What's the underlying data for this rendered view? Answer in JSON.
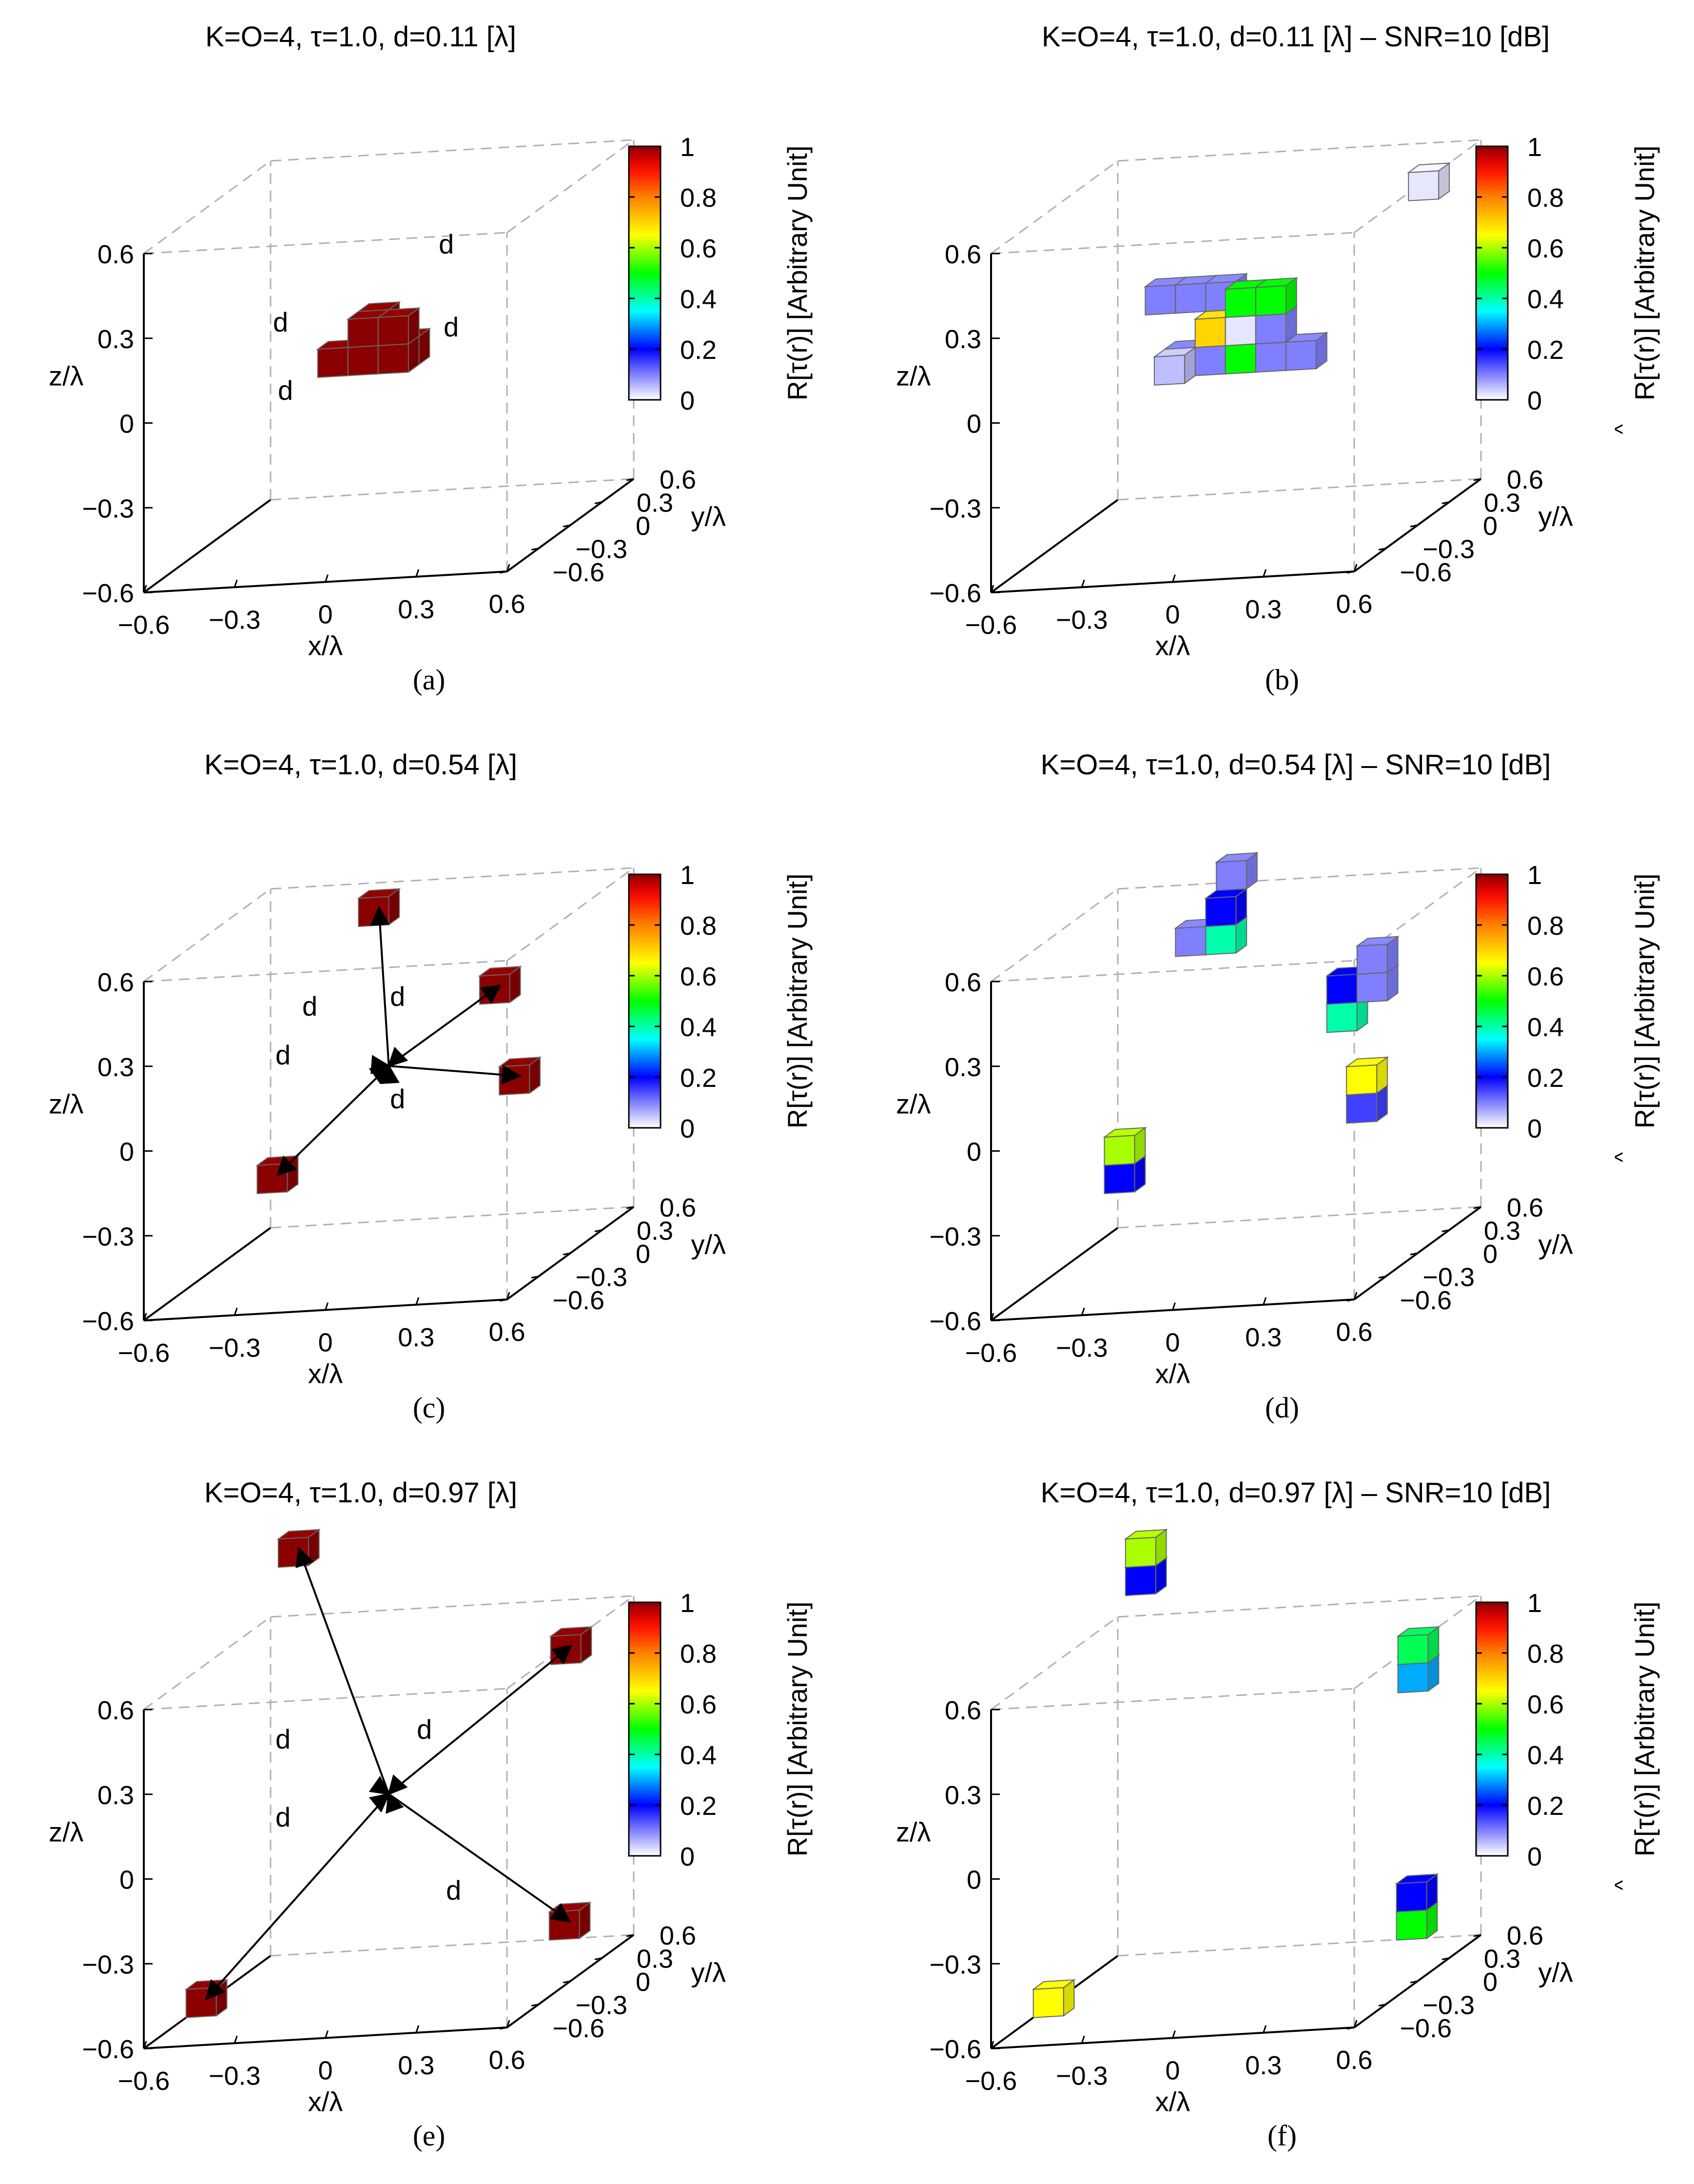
{
  "chart_data": [
    {
      "type": "voxel3d",
      "panel": "a",
      "title": "K=O=4, τ=1.0, d=0.11 [λ]",
      "xlabel": "x/λ",
      "ylabel": "y/λ",
      "zlabel": "z/λ",
      "ticks": [
        "−0.6",
        "−0.3",
        "0",
        "0.3",
        "0.6"
      ],
      "colorbar": {
        "label": "R[τ(r)] [Arbitrary Unit]",
        "hat": false,
        "ticks": [
          "0",
          "0.2",
          "0.4",
          "0.6",
          "0.8",
          "1"
        ]
      },
      "distance_labels": [
        "d",
        "d",
        "d",
        "d"
      ],
      "voxels": [
        {
          "x": -0.05,
          "y": -0.05,
          "z": 0.15,
          "v": 1.0
        },
        {
          "x": 0.05,
          "y": -0.05,
          "z": 0.15,
          "v": 1.0
        },
        {
          "x": -0.05,
          "y": 0.05,
          "z": 0.15,
          "v": 1.0
        },
        {
          "x": -0.05,
          "y": -0.05,
          "z": 0.05,
          "v": 1.0
        },
        {
          "x": 0.05,
          "y": -0.05,
          "z": 0.05,
          "v": 1.0
        },
        {
          "x": -0.15,
          "y": -0.05,
          "z": 0.05,
          "v": 1.0
        },
        {
          "x": -0.05,
          "y": 0.05,
          "z": 0.05,
          "v": 1.0
        },
        {
          "x": 0.05,
          "y": 0.05,
          "z": 0.05,
          "v": 1.0
        }
      ]
    },
    {
      "type": "voxel3d",
      "panel": "b",
      "title": "K=O=4, τ=1.0, d=0.11 [λ] – SNR=10 [dB]",
      "xlabel": "x/λ",
      "ylabel": "y/λ",
      "zlabel": "z/λ",
      "ticks": [
        "−0.6",
        "−0.3",
        "0",
        "0.3",
        "0.6"
      ],
      "colorbar": {
        "label": "R[τ(r)] [Arbitrary Unit]",
        "hat": true,
        "ticks": [
          "0",
          "0.2",
          "0.4",
          "0.6",
          "0.8",
          "1"
        ]
      },
      "voxels": [
        {
          "x": -0.25,
          "y": 0.05,
          "z": 0.25,
          "v": 0.1
        },
        {
          "x": -0.15,
          "y": 0.05,
          "z": 0.25,
          "v": 0.1
        },
        {
          "x": -0.05,
          "y": 0.05,
          "z": 0.25,
          "v": 0.1
        },
        {
          "x": 0.05,
          "y": -0.05,
          "z": 0.25,
          "v": 0.5
        },
        {
          "x": 0.15,
          "y": -0.05,
          "z": 0.25,
          "v": 0.5
        },
        {
          "x": -0.05,
          "y": -0.05,
          "z": 0.15,
          "v": 0.7
        },
        {
          "x": 0.05,
          "y": -0.05,
          "z": 0.15,
          "v": 0.02
        },
        {
          "x": 0.15,
          "y": -0.05,
          "z": 0.15,
          "v": 0.1
        },
        {
          "x": -0.15,
          "y": -0.05,
          "z": 0.05,
          "v": 0.1
        },
        {
          "x": -0.05,
          "y": -0.05,
          "z": 0.05,
          "v": 0.1
        },
        {
          "x": 0.05,
          "y": -0.05,
          "z": 0.05,
          "v": 0.5
        },
        {
          "x": 0.15,
          "y": -0.05,
          "z": 0.05,
          "v": 0.1
        },
        {
          "x": 0.25,
          "y": -0.05,
          "z": 0.05,
          "v": 0.1
        },
        {
          "x": -0.15,
          "y": -0.15,
          "z": 0.05,
          "v": 0.05
        },
        {
          "x": 0.55,
          "y": 0.25,
          "z": 0.55,
          "v": 0.02
        }
      ]
    },
    {
      "type": "voxel3d",
      "panel": "c",
      "title": "K=O=4, τ=1.0, d=0.54 [λ]",
      "xlabel": "x/λ",
      "ylabel": "y/λ",
      "zlabel": "z/λ",
      "ticks": [
        "−0.6",
        "−0.3",
        "0",
        "0.3",
        "0.6"
      ],
      "colorbar": {
        "label": "R[τ(r)] [Arbitrary Unit]",
        "hat": false,
        "ticks": [
          "0",
          "0.2",
          "0.4",
          "0.6",
          "0.8",
          "1"
        ]
      },
      "distance_labels": [
        "d",
        "d",
        "d",
        "d"
      ],
      "voxels": [
        {
          "x": -0.05,
          "y": 0.05,
          "z": 0.65,
          "v": 1.0
        },
        {
          "x": 0.35,
          "y": 0.05,
          "z": 0.35,
          "v": 1.0
        },
        {
          "x": 0.45,
          "y": -0.05,
          "z": 0.05,
          "v": 1.0
        },
        {
          "x": -0.35,
          "y": -0.05,
          "z": -0.25,
          "v": 1.0
        }
      ]
    },
    {
      "type": "voxel3d",
      "panel": "d",
      "title": "K=O=4, τ=1.0, d=0.54 [λ] – SNR=10 [dB]",
      "xlabel": "x/λ",
      "ylabel": "y/λ",
      "zlabel": "z/λ",
      "ticks": [
        "−0.6",
        "−0.3",
        "0",
        "0.3",
        "0.6"
      ],
      "colorbar": {
        "label": "R[τ(r)] [Arbitrary Unit]",
        "hat": true,
        "ticks": [
          "0",
          "0.2",
          "0.4",
          "0.6",
          "0.8",
          "1"
        ]
      },
      "voxels": [
        {
          "x": -0.05,
          "y": 0.15,
          "z": 0.75,
          "v": 0.1
        },
        {
          "x": -0.05,
          "y": 0.05,
          "z": 0.65,
          "v": 0.2
        },
        {
          "x": -0.15,
          "y": 0.05,
          "z": 0.55,
          "v": 0.1
        },
        {
          "x": -0.05,
          "y": 0.05,
          "z": 0.55,
          "v": 0.4
        },
        {
          "x": 0.35,
          "y": 0.05,
          "z": 0.35,
          "v": 0.2
        },
        {
          "x": 0.45,
          "y": 0.05,
          "z": 0.45,
          "v": 0.1
        },
        {
          "x": 0.45,
          "y": 0.05,
          "z": 0.35,
          "v": 0.1
        },
        {
          "x": 0.35,
          "y": 0.05,
          "z": 0.25,
          "v": 0.4
        },
        {
          "x": 0.45,
          "y": -0.05,
          "z": 0.05,
          "v": 0.65
        },
        {
          "x": 0.45,
          "y": -0.05,
          "z": -0.05,
          "v": 0.15
        },
        {
          "x": -0.35,
          "y": -0.05,
          "z": -0.15,
          "v": 0.6
        },
        {
          "x": -0.35,
          "y": -0.05,
          "z": -0.25,
          "v": 0.2
        }
      ]
    },
    {
      "type": "voxel3d",
      "panel": "e",
      "title": "K=O=4, τ=1.0, d=0.97 [λ]",
      "xlabel": "x/λ",
      "ylabel": "y/λ",
      "zlabel": "z/λ",
      "ticks": [
        "−0.6",
        "−0.3",
        "0",
        "0.3",
        "0.6"
      ],
      "colorbar": {
        "label": "R[τ(r)] [Arbitrary Unit]",
        "hat": false,
        "ticks": [
          "0",
          "0.2",
          "0.4",
          "0.6",
          "0.8",
          "1"
        ]
      },
      "distance_labels": [
        "d",
        "d",
        "d",
        "d"
      ],
      "voxels": [
        {
          "x": -0.35,
          "y": 0.15,
          "z": 0.95,
          "v": 1.0
        },
        {
          "x": 0.55,
          "y": 0.15,
          "z": 0.55,
          "v": 1.0
        },
        {
          "x": 0.65,
          "y": -0.15,
          "z": -0.35,
          "v": 1.0
        },
        {
          "x": -0.55,
          "y": -0.15,
          "z": -0.55,
          "v": 1.0
        }
      ]
    },
    {
      "type": "voxel3d",
      "panel": "f",
      "title": "K=O=4, τ=1.0, d=0.97 [λ] – SNR=10 [dB]",
      "xlabel": "x/λ",
      "ylabel": "y/λ",
      "zlabel": "z/λ",
      "ticks": [
        "−0.6",
        "−0.3",
        "0",
        "0.3",
        "0.6"
      ],
      "colorbar": {
        "label": "R[τ(r)] [Arbitrary Unit]",
        "hat": true,
        "ticks": [
          "0",
          "0.2",
          "0.4",
          "0.6",
          "0.8",
          "1"
        ]
      },
      "voxels": [
        {
          "x": -0.35,
          "y": 0.15,
          "z": 0.95,
          "v": 0.6
        },
        {
          "x": -0.35,
          "y": 0.15,
          "z": 0.85,
          "v": 0.2
        },
        {
          "x": 0.55,
          "y": 0.15,
          "z": 0.55,
          "v": 0.45
        },
        {
          "x": 0.55,
          "y": 0.15,
          "z": 0.45,
          "v": 0.3
        },
        {
          "x": 0.65,
          "y": -0.15,
          "z": -0.25,
          "v": 0.2
        },
        {
          "x": 0.65,
          "y": -0.15,
          "z": -0.35,
          "v": 0.5
        },
        {
          "x": -0.55,
          "y": -0.15,
          "z": -0.55,
          "v": 0.65
        }
      ]
    }
  ],
  "captions": [
    "(a)",
    "(b)",
    "(c)",
    "(d)",
    "(e)",
    "(f)"
  ],
  "colormap": [
    "#ffffff",
    "#0000ff",
    "#00ffff",
    "#00ff00",
    "#ffff00",
    "#ff8000",
    "#ff0000",
    "#8b0000"
  ]
}
